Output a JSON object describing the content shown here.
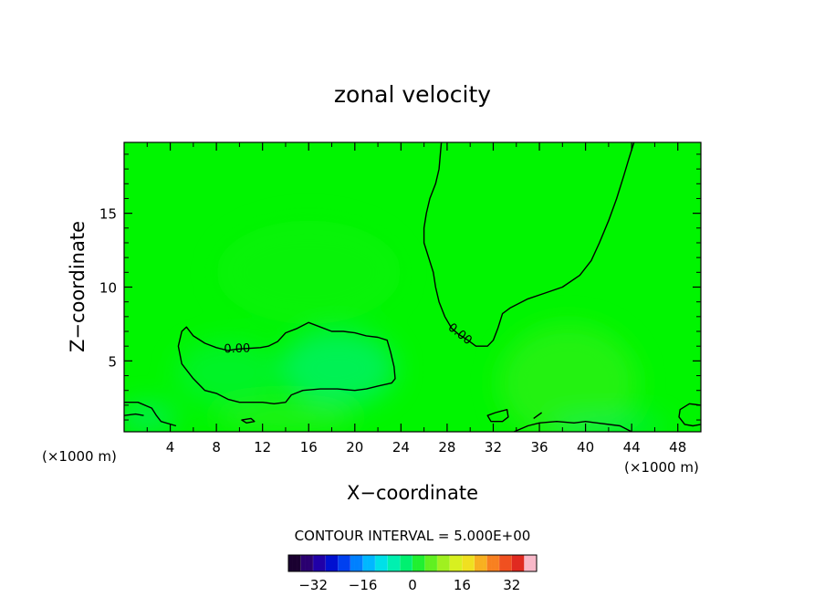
{
  "chart_data": {
    "type": "heatmap",
    "title": "zonal velocity",
    "xlabel": "X−coordinate",
    "ylabel": "Z−coordinate",
    "x_unit_left": "(×1000 m)",
    "x_unit_right": "(×1000 m)",
    "xlim": [
      0,
      50
    ],
    "ylim": [
      0.2,
      19.8
    ],
    "x_ticks": [
      4,
      8,
      12,
      16,
      20,
      24,
      28,
      32,
      36,
      40,
      44,
      48
    ],
    "x_tick_labels": [
      "4",
      "8",
      "12",
      "16",
      "20",
      "24",
      "28",
      "32",
      "36",
      "40",
      "44",
      "48"
    ],
    "y_ticks": [
      5,
      10,
      15
    ],
    "y_tick_labels": [
      "5",
      "10",
      "15"
    ],
    "grid": false,
    "contour_interval_text": "CONTOUR INTERVAL = 5.000E+00",
    "contour_labels": [
      {
        "text": "0.00",
        "x": 9.8,
        "y": 5.8,
        "angle": -2
      },
      {
        "text": "0.00",
        "x": 29.1,
        "y": 6.8,
        "angle": 38
      }
    ],
    "contours": [
      {
        "name": "zero-contour-left",
        "level": 0,
        "points": [
          [
            5.0,
            7.0
          ],
          [
            5.4,
            7.3
          ],
          [
            6.0,
            6.7
          ],
          [
            7.0,
            6.2
          ],
          [
            8.0,
            5.9
          ],
          [
            9.0,
            5.7
          ],
          [
            9.8,
            5.8
          ],
          [
            11.8,
            5.9
          ],
          [
            12.5,
            6.0
          ],
          [
            13.3,
            6.3
          ],
          [
            14.0,
            6.9
          ],
          [
            15.0,
            7.2
          ],
          [
            16.0,
            7.6
          ],
          [
            17.0,
            7.3
          ],
          [
            18.0,
            7.0
          ],
          [
            19.0,
            7.0
          ],
          [
            20.0,
            6.9
          ],
          [
            21.0,
            6.7
          ],
          [
            22.0,
            6.6
          ],
          [
            22.8,
            6.4
          ],
          [
            23.1,
            5.6
          ],
          [
            23.4,
            4.6
          ],
          [
            23.5,
            3.8
          ],
          [
            23.2,
            3.5
          ],
          [
            22.0,
            3.3
          ],
          [
            21.0,
            3.1
          ],
          [
            20.0,
            3.0
          ],
          [
            18.5,
            3.1
          ],
          [
            17.0,
            3.1
          ],
          [
            15.5,
            3.0
          ],
          [
            14.5,
            2.7
          ],
          [
            14.0,
            2.2
          ],
          [
            13.0,
            2.1
          ],
          [
            12.0,
            2.2
          ],
          [
            10.0,
            2.2
          ],
          [
            9.0,
            2.4
          ],
          [
            8.0,
            2.8
          ],
          [
            7.0,
            3.0
          ],
          [
            6.0,
            3.8
          ],
          [
            5.0,
            4.8
          ],
          [
            4.7,
            6.0
          ],
          [
            5.0,
            7.0
          ]
        ],
        "closed": true
      },
      {
        "name": "zero-contour-right",
        "level": 0,
        "points": [
          [
            27.5,
            19.8
          ],
          [
            27.3,
            18.0
          ],
          [
            27.0,
            17.0
          ],
          [
            26.5,
            16.0
          ],
          [
            26.2,
            15.0
          ],
          [
            26.0,
            14.0
          ],
          [
            26.0,
            13.0
          ],
          [
            26.4,
            12.0
          ],
          [
            26.8,
            11.0
          ],
          [
            27.0,
            10.0
          ],
          [
            27.3,
            9.0
          ],
          [
            27.8,
            8.0
          ],
          [
            28.4,
            7.2
          ],
          [
            29.0,
            6.8
          ],
          [
            29.8,
            6.4
          ],
          [
            30.5,
            6.0
          ],
          [
            31.5,
            6.0
          ],
          [
            32.0,
            6.4
          ],
          [
            32.4,
            7.2
          ],
          [
            32.8,
            8.2
          ],
          [
            33.5,
            8.6
          ],
          [
            35.0,
            9.2
          ],
          [
            36.5,
            9.6
          ],
          [
            38.0,
            10.0
          ],
          [
            39.5,
            10.8
          ],
          [
            40.5,
            11.8
          ],
          [
            41.2,
            13.0
          ],
          [
            42.0,
            14.5
          ],
          [
            42.7,
            16.0
          ],
          [
            43.3,
            17.5
          ],
          [
            43.8,
            18.8
          ],
          [
            44.2,
            19.8
          ]
        ],
        "closed": false
      },
      {
        "name": "low-contour-a",
        "level": 0,
        "points": [
          [
            0,
            2.2
          ],
          [
            1.2,
            2.2
          ],
          [
            2.4,
            1.8
          ],
          [
            2.8,
            1.3
          ],
          [
            3.2,
            0.9
          ],
          [
            4.5,
            0.6
          ]
        ],
        "closed": false
      },
      {
        "name": "low-contour-b",
        "level": 0,
        "points": [
          [
            0,
            1.3
          ],
          [
            1.0,
            1.4
          ],
          [
            1.7,
            1.3
          ]
        ],
        "closed": false
      },
      {
        "name": "low-contour-c",
        "level": 0,
        "points": [
          [
            31.5,
            1.3
          ],
          [
            32.2,
            1.5
          ],
          [
            33.2,
            1.7
          ],
          [
            33.3,
            1.2
          ],
          [
            32.8,
            0.9
          ],
          [
            31.8,
            0.9
          ],
          [
            31.5,
            1.3
          ]
        ],
        "closed": true
      },
      {
        "name": "low-contour-d",
        "level": 0,
        "points": [
          [
            33.8,
            0.2
          ],
          [
            35.0,
            0.6
          ],
          [
            36.0,
            0.8
          ],
          [
            37.5,
            0.9
          ],
          [
            39.0,
            0.8
          ],
          [
            40.0,
            0.9
          ],
          [
            41.0,
            0.8
          ],
          [
            43.0,
            0.6
          ],
          [
            44.0,
            0.2
          ]
        ],
        "closed": false
      },
      {
        "name": "low-contour-e",
        "level": 0,
        "points": [
          [
            35.5,
            1.1
          ],
          [
            36.2,
            1.5
          ]
        ],
        "closed": false
      },
      {
        "name": "low-contour-f",
        "level": 0,
        "points": [
          [
            50,
            2.0
          ],
          [
            49.0,
            2.1
          ],
          [
            48.2,
            1.7
          ],
          [
            48.1,
            1.2
          ],
          [
            48.6,
            0.7
          ],
          [
            49.3,
            0.6
          ],
          [
            50,
            0.7
          ]
        ],
        "closed": false
      },
      {
        "name": "low-contour-g",
        "level": 0,
        "points": [
          [
            10.2,
            1.0
          ],
          [
            11.0,
            1.1
          ],
          [
            11.3,
            0.9
          ],
          [
            10.6,
            0.8
          ],
          [
            10.2,
            1.0
          ]
        ],
        "closed": true
      }
    ],
    "colorbar": {
      "min": -40,
      "max": 40,
      "ticks": [
        -32,
        -16,
        0,
        16,
        32
      ],
      "tick_labels": [
        "−32",
        "−16",
        "0",
        "16",
        "32"
      ],
      "colors": [
        "#1a0030",
        "#2a0070",
        "#2000a8",
        "#0010d0",
        "#0040f0",
        "#0080ff",
        "#00b8ff",
        "#00e0e8",
        "#00f0b0",
        "#00f070",
        "#20f030",
        "#60f020",
        "#a0f020",
        "#d8f020",
        "#f0e020",
        "#f8b020",
        "#f88020",
        "#f05020",
        "#e02a20",
        "#f8b8c8"
      ]
    },
    "field_background": "#00f500",
    "field_patches": [
      {
        "x": 18.5,
        "y": 4.5,
        "rx": 5.0,
        "ry": 2.6,
        "color": "#00f080",
        "opacity": 0.65
      },
      {
        "x": 9.0,
        "y": 4.2,
        "rx": 4.5,
        "ry": 2.2,
        "color": "#00f060",
        "opacity": 0.4
      },
      {
        "x": 14.0,
        "y": 1.2,
        "rx": 6.0,
        "ry": 0.9,
        "color": "#40f030",
        "opacity": 0.5
      },
      {
        "x": 38.5,
        "y": 3.5,
        "rx": 6.0,
        "ry": 4.0,
        "color": "#40f020",
        "opacity": 0.55
      },
      {
        "x": 42.0,
        "y": 0.6,
        "rx": 5.0,
        "ry": 0.5,
        "color": "#00e890",
        "opacity": 0.6
      },
      {
        "x": 16.0,
        "y": 11.0,
        "rx": 8.0,
        "ry": 3.5,
        "color": "#20f020",
        "opacity": 0.25
      },
      {
        "x": 2.0,
        "y": 1.2,
        "rx": 2.5,
        "ry": 0.9,
        "color": "#00e8a0",
        "opacity": 0.5
      }
    ]
  }
}
